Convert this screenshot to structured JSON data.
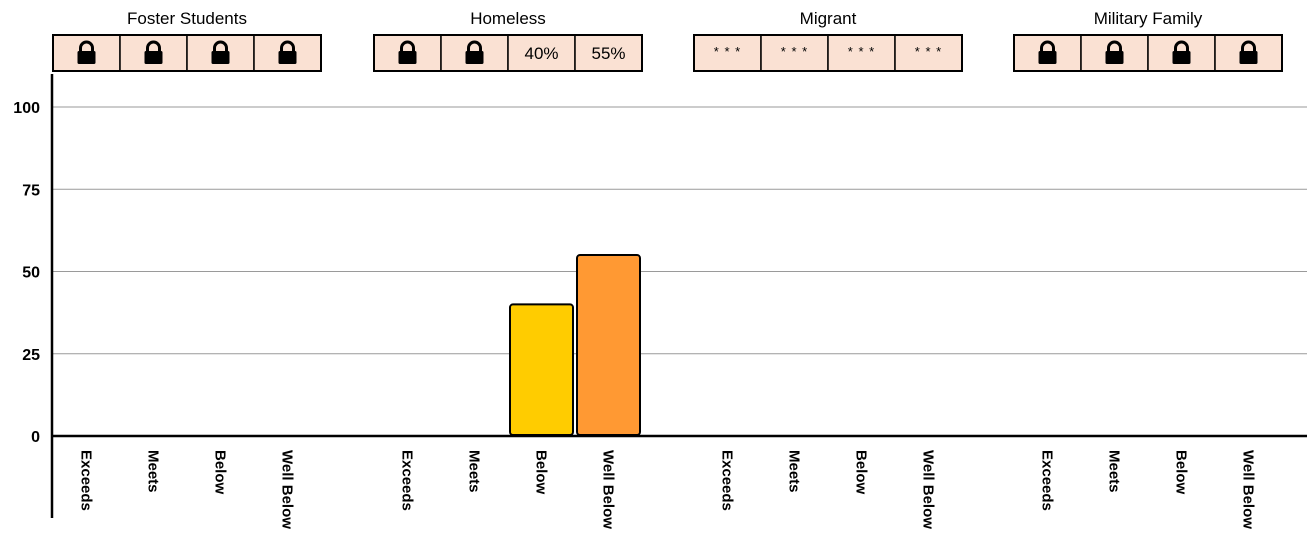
{
  "chart_data": {
    "type": "bar",
    "ylim": [
      0,
      100
    ],
    "yticks": [
      "0",
      "25",
      "50",
      "75",
      "100"
    ],
    "grid": true,
    "categories": [
      "Exceeds",
      "Meets",
      "Below",
      "Well Below"
    ],
    "bar_colors": {
      "Exceeds": "#2e7d32",
      "Meets": "#8bc34a",
      "Below": "#ffcc00",
      "Well Below": "#ff9933"
    },
    "cell_fill": "#fae1d3",
    "groups": [
      {
        "name": "Foster Students",
        "cells": [
          "lock",
          "lock",
          "lock",
          "lock"
        ],
        "values": [
          null,
          null,
          null,
          null
        ]
      },
      {
        "name": "Homeless",
        "cells": [
          "lock",
          "lock",
          "40%",
          "55%"
        ],
        "values": [
          null,
          null,
          40,
          55
        ]
      },
      {
        "name": "Migrant",
        "cells": [
          "* * *",
          "* * *",
          "* * *",
          "* * *"
        ],
        "values": [
          null,
          null,
          null,
          null
        ]
      },
      {
        "name": "Military Family",
        "cells": [
          "lock",
          "lock",
          "lock",
          "lock"
        ],
        "values": [
          null,
          null,
          null,
          null
        ]
      }
    ]
  }
}
